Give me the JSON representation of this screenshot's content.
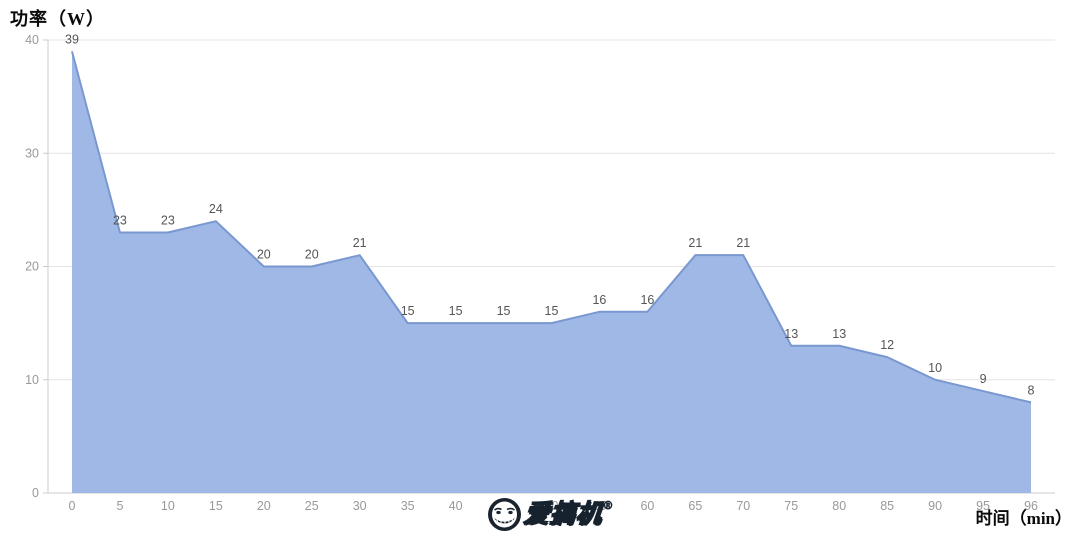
{
  "title": "功率（W）",
  "x_axis_title": "时间（min）",
  "watermark": {
    "text": "爱搞机",
    "reg_mark": "®"
  },
  "colors": {
    "area_fill": "#9fb8e6",
    "area_line": "#7a98d0",
    "gridline": "#e4e4e4",
    "axis_line": "#cccccc",
    "tick_label": "#999999",
    "data_label": "#555555",
    "watermark_bg": "#1a242e",
    "watermark_face": "#ffffff"
  },
  "chart_data": {
    "type": "area",
    "title": "功率（W）",
    "xlabel": "时间（min）",
    "ylabel": "",
    "categories": [
      "0",
      "5",
      "10",
      "15",
      "20",
      "25",
      "30",
      "35",
      "40",
      "45",
      "50",
      "55",
      "60",
      "65",
      "70",
      "75",
      "80",
      "85",
      "90",
      "95",
      "96"
    ],
    "values": [
      39,
      23,
      23,
      24,
      20,
      20,
      21,
      15,
      15,
      15,
      15,
      16,
      16,
      21,
      21,
      13,
      13,
      12,
      10,
      9,
      8
    ],
    "ylim": [
      0,
      40
    ],
    "yticks": [
      0,
      10,
      20,
      30,
      40
    ],
    "grid": true,
    "data_labels": true,
    "legend": "none"
  }
}
